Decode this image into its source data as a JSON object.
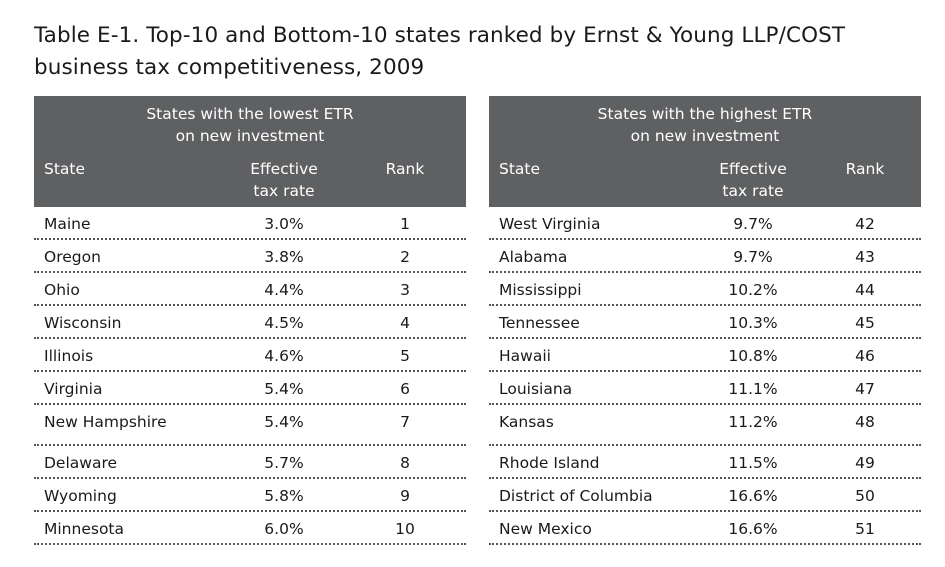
{
  "title": {
    "line1": "Table E-1. Top-10 and Bottom-10 states ranked by Ernst & Young LLP/COST",
    "line2": "business tax competitiveness, 2009"
  },
  "colors": {
    "header_bg": "#5f6062",
    "header_text": "#ffffff"
  },
  "lowest": {
    "group_line1": "States with the lowest ETR",
    "group_line2": "on new investment",
    "col_state": "State",
    "col_etr_line1": "Effective",
    "col_etr_line2": "tax rate",
    "col_rank": "Rank",
    "rows": [
      {
        "state": "Maine",
        "etr": "3.0%",
        "rank": "1"
      },
      {
        "state": "Oregon",
        "etr": "3.8%",
        "rank": "2"
      },
      {
        "state": "Ohio",
        "etr": "4.4%",
        "rank": "3"
      },
      {
        "state": "Wisconsin",
        "etr": "4.5%",
        "rank": "4"
      },
      {
        "state": "Illinois",
        "etr": "4.6%",
        "rank": "5"
      },
      {
        "state": "Virginia",
        "etr": "5.4%",
        "rank": "6"
      },
      {
        "state": "New Hampshire",
        "etr": "5.4%",
        "rank": "7"
      },
      {
        "state": "Delaware",
        "etr": "5.7%",
        "rank": "8"
      },
      {
        "state": "Wyoming",
        "etr": "5.8%",
        "rank": "9"
      },
      {
        "state": "Minnesota",
        "etr": "6.0%",
        "rank": "10"
      }
    ]
  },
  "highest": {
    "group_line1": "States with the highest ETR",
    "group_line2": "on new investment",
    "col_state": "State",
    "col_etr_line1": "Effective",
    "col_etr_line2": "tax rate",
    "col_rank": "Rank",
    "rows": [
      {
        "state": "West Virginia",
        "etr": "9.7%",
        "rank": "42"
      },
      {
        "state": "Alabama",
        "etr": "9.7%",
        "rank": "43"
      },
      {
        "state": "Mississippi",
        "etr": "10.2%",
        "rank": "44"
      },
      {
        "state": "Tennessee",
        "etr": "10.3%",
        "rank": "45"
      },
      {
        "state": "Hawaii",
        "etr": "10.8%",
        "rank": "46"
      },
      {
        "state": "Louisiana",
        "etr": "11.1%",
        "rank": "47"
      },
      {
        "state": "Kansas",
        "etr": "11.2%",
        "rank": "48"
      },
      {
        "state": "Rhode Island",
        "etr": "11.5%",
        "rank": "49"
      },
      {
        "state": "District of Columbia",
        "etr": "16.6%",
        "rank": "50"
      },
      {
        "state": "New Mexico",
        "etr": "16.6%",
        "rank": "51"
      }
    ]
  }
}
